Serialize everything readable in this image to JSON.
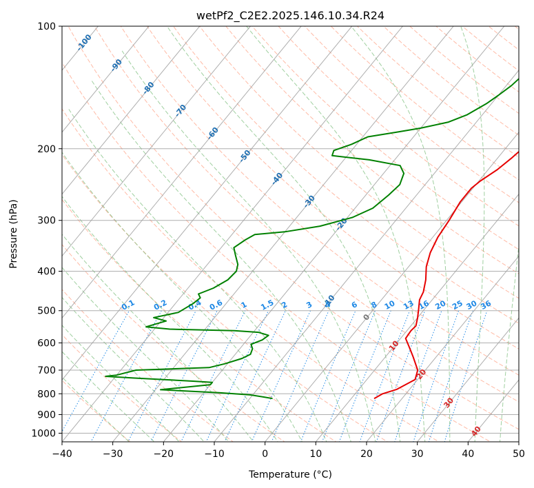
{
  "chart_data": {
    "type": "line",
    "title": "wetPf2_C2E2.2025.146.10.34.R24",
    "xlabel": "Temperature (°C)",
    "ylabel": "Pressure (hPa)",
    "xlim": [
      -40,
      50
    ],
    "ylim": [
      1050,
      100
    ],
    "y_scale": "log",
    "grid": true,
    "x_ticks": [
      -40,
      -30,
      -20,
      -10,
      0,
      10,
      20,
      30,
      40,
      50
    ],
    "y_ticks": [
      100,
      200,
      300,
      400,
      500,
      600,
      700,
      800,
      900,
      1000
    ],
    "colors": {
      "temperature": "#e60000",
      "dewpoint": "#008000",
      "dry_adiabat": "#ff8c69",
      "moist_adiabat": "#7fbf7f",
      "mixing_ratio": "#1e88e5",
      "isotherm": "#a0a0a0",
      "mixing_label": "#1e88e5",
      "temp_label": "#1f6fb2",
      "warm_label": "#d62728"
    },
    "series": [
      {
        "key": "temperature",
        "points": [
          [
            14.5,
            822
          ],
          [
            15.4,
            800
          ],
          [
            17.5,
            780
          ],
          [
            19.5,
            738
          ],
          [
            18.5,
            700
          ],
          [
            15.5,
            650
          ],
          [
            13.5,
            620
          ],
          [
            11.0,
            585
          ],
          [
            10.8,
            560
          ],
          [
            11.0,
            545
          ],
          [
            10.0,
            520
          ],
          [
            8.8,
            495
          ],
          [
            7.5,
            470
          ],
          [
            7.0,
            450
          ],
          [
            5.5,
            420
          ],
          [
            3.5,
            390
          ],
          [
            2.0,
            360
          ],
          [
            1.0,
            330
          ],
          [
            0.5,
            300
          ],
          [
            -0.3,
            270
          ],
          [
            -0.3,
            250
          ],
          [
            0.3,
            240
          ],
          [
            1.8,
            225
          ],
          [
            2.8,
            210
          ],
          [
            3.6,
            195
          ],
          [
            4.0,
            180
          ],
          [
            4.2,
            165
          ],
          [
            4.6,
            150
          ],
          [
            5.7,
            138
          ],
          [
            6.7,
            128
          ],
          [
            7.4,
            120
          ],
          [
            7.8,
            110
          ],
          [
            8.8,
            104
          ],
          [
            10.2,
            100
          ]
        ]
      },
      {
        "key": "dewpoint",
        "points": [
          [
            -5.5,
            822
          ],
          [
            -7.5,
            815
          ],
          [
            -10.5,
            805
          ],
          [
            -17.0,
            795
          ],
          [
            -29.0,
            782
          ],
          [
            -20.0,
            760
          ],
          [
            -20.0,
            750
          ],
          [
            -24.0,
            745
          ],
          [
            -36.0,
            732
          ],
          [
            -42.0,
            725
          ],
          [
            -40.0,
            720
          ],
          [
            -37.0,
            700
          ],
          [
            -23.0,
            690
          ],
          [
            -20.5,
            675
          ],
          [
            -18.0,
            655
          ],
          [
            -17.0,
            640
          ],
          [
            -17.5,
            620
          ],
          [
            -18.5,
            605
          ],
          [
            -17.0,
            590
          ],
          [
            -16.5,
            575
          ],
          [
            -19.0,
            565
          ],
          [
            -24.0,
            560
          ],
          [
            -37.0,
            555
          ],
          [
            -42.0,
            548
          ],
          [
            -39.0,
            530
          ],
          [
            -42.0,
            520
          ],
          [
            -38.0,
            505
          ],
          [
            -36.5,
            480
          ],
          [
            -36.0,
            465
          ],
          [
            -37.0,
            455
          ],
          [
            -35.0,
            440
          ],
          [
            -33.5,
            420
          ],
          [
            -33.2,
            400
          ],
          [
            -34.0,
            385
          ],
          [
            -36.0,
            365
          ],
          [
            -37.5,
            350
          ],
          [
            -36.5,
            335
          ],
          [
            -35.5,
            325
          ],
          [
            -30.0,
            320
          ],
          [
            -24.0,
            310
          ],
          [
            -19.0,
            295
          ],
          [
            -16.5,
            280
          ],
          [
            -15.5,
            260
          ],
          [
            -15.0,
            245
          ],
          [
            -16.0,
            230
          ],
          [
            -18.0,
            220
          ],
          [
            -25.0,
            213
          ],
          [
            -33.0,
            208
          ],
          [
            -33.5,
            202
          ],
          [
            -31.0,
            195
          ],
          [
            -29.0,
            187
          ],
          [
            -24.0,
            182
          ],
          [
            -20.0,
            178
          ],
          [
            -15.5,
            172
          ],
          [
            -13.0,
            165
          ],
          [
            -11.0,
            155
          ],
          [
            -10.0,
            148
          ],
          [
            -9.0,
            140
          ],
          [
            -8.5,
            133
          ],
          [
            -5.0,
            125
          ],
          [
            -2.0,
            118
          ],
          [
            0.5,
            110
          ],
          [
            3.5,
            100
          ]
        ]
      }
    ],
    "mixing_ratio_labels": [
      "0.1",
      "0.2",
      "0.4",
      "0.6",
      "1",
      "1.5",
      "2",
      "3",
      "4",
      "6",
      "8",
      "10",
      "13",
      "16",
      "20",
      "25",
      "30",
      "36"
    ],
    "isotherm_labels": [
      "-100",
      "-90",
      "-80",
      "-70",
      "-60",
      "-50",
      "-40",
      "-30",
      "-20",
      "-10",
      "0",
      "10",
      "20",
      "30",
      "40"
    ]
  }
}
